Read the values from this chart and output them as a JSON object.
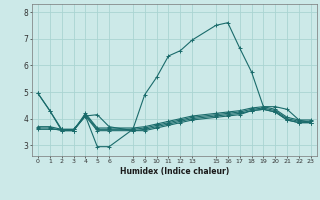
{
  "xlabel": "Humidex (Indice chaleur)",
  "bg_color": "#cce9e8",
  "grid_color": "#aad4d2",
  "line_color": "#1a6b6b",
  "xlim": [
    -0.5,
    23.5
  ],
  "ylim": [
    2.6,
    8.3
  ],
  "xticks": [
    0,
    1,
    2,
    3,
    4,
    5,
    6,
    8,
    9,
    10,
    11,
    12,
    13,
    15,
    16,
    17,
    18,
    19,
    20,
    21,
    22,
    23
  ],
  "yticks": [
    3,
    4,
    5,
    6,
    7,
    8
  ],
  "lines": [
    {
      "x": [
        0,
        1,
        2,
        3,
        4,
        5,
        6,
        8,
        9,
        10,
        11,
        12,
        13,
        15,
        16,
        17,
        18,
        19,
        20,
        21,
        22,
        23
      ],
      "y": [
        4.95,
        4.3,
        3.6,
        3.6,
        4.1,
        2.95,
        2.95,
        3.6,
        4.9,
        5.55,
        6.35,
        6.55,
        6.95,
        7.5,
        7.6,
        6.65,
        5.75,
        4.45,
        4.45,
        4.35,
        3.95,
        3.85
      ]
    },
    {
      "x": [
        0,
        1,
        2,
        3,
        4,
        5,
        6,
        8,
        9,
        10,
        11,
        12,
        13,
        15,
        16,
        17,
        18,
        19,
        20,
        21,
        22,
        23
      ],
      "y": [
        3.6,
        3.6,
        3.6,
        3.6,
        4.1,
        3.55,
        3.55,
        3.55,
        3.6,
        3.7,
        3.8,
        3.9,
        4.0,
        4.1,
        4.15,
        4.2,
        4.3,
        4.35,
        4.25,
        3.95,
        3.85,
        3.85
      ]
    },
    {
      "x": [
        0,
        1,
        2,
        3,
        4,
        5,
        6,
        8,
        9,
        10,
        11,
        12,
        13,
        15,
        16,
        17,
        18,
        19,
        20,
        21,
        22,
        23
      ],
      "y": [
        3.65,
        3.65,
        3.55,
        3.55,
        4.15,
        3.6,
        3.6,
        3.6,
        3.65,
        3.75,
        3.85,
        3.95,
        4.05,
        4.15,
        4.2,
        4.25,
        4.35,
        4.4,
        4.3,
        4.0,
        3.9,
        3.9
      ]
    },
    {
      "x": [
        0,
        1,
        2,
        3,
        4,
        5,
        6,
        8,
        9,
        10,
        11,
        12,
        13,
        15,
        16,
        17,
        18,
        19,
        20,
        21,
        22,
        23
      ],
      "y": [
        3.7,
        3.7,
        3.6,
        3.55,
        4.2,
        3.65,
        3.65,
        3.65,
        3.7,
        3.8,
        3.9,
        4.0,
        4.1,
        4.2,
        4.25,
        4.3,
        4.4,
        4.45,
        4.35,
        4.05,
        3.95,
        3.95
      ]
    },
    {
      "x": [
        0,
        1,
        2,
        3,
        4,
        5,
        6,
        8,
        9,
        10,
        11,
        12,
        13,
        15,
        16,
        17,
        18,
        19,
        20,
        21,
        22,
        23
      ],
      "y": [
        4.95,
        4.3,
        3.55,
        3.55,
        4.1,
        4.15,
        3.7,
        3.55,
        3.55,
        3.65,
        3.75,
        3.85,
        3.95,
        4.05,
        4.1,
        4.15,
        4.3,
        4.35,
        4.25,
        3.95,
        3.85,
        3.85
      ]
    }
  ]
}
